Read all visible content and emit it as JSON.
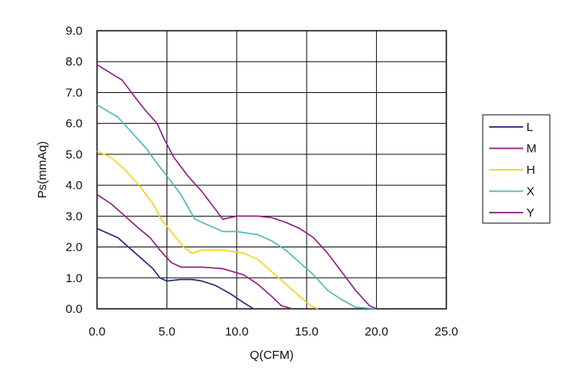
{
  "chart_data": {
    "type": "line",
    "xlabel": "Q(CFM)",
    "ylabel": "Ps(mmAq)",
    "xlim": [
      0,
      25
    ],
    "ylim": [
      0,
      9
    ],
    "x_ticks": [
      "0.0",
      "5.0",
      "10.0",
      "15.0",
      "20.0",
      "25.0"
    ],
    "y_ticks": [
      "0.0",
      "1.0",
      "2.0",
      "3.0",
      "4.0",
      "5.0",
      "6.0",
      "7.0",
      "8.0",
      "9.0"
    ],
    "grid": true,
    "legend_position": "right",
    "series": [
      {
        "name": "L",
        "color": "#1f2a78",
        "points": [
          [
            0,
            2.6
          ],
          [
            1.5,
            2.3
          ],
          [
            3,
            1.7
          ],
          [
            4,
            1.3
          ],
          [
            4.5,
            1.0
          ],
          [
            5,
            0.9
          ],
          [
            6,
            0.95
          ],
          [
            6.8,
            0.95
          ],
          [
            7.5,
            0.9
          ],
          [
            8.5,
            0.75
          ],
          [
            9.5,
            0.5
          ],
          [
            10.5,
            0.2
          ],
          [
            11.2,
            0
          ]
        ]
      },
      {
        "name": "M",
        "color": "#8b1e82",
        "points": [
          [
            0,
            3.7
          ],
          [
            1,
            3.4
          ],
          [
            2,
            3.0
          ],
          [
            3,
            2.6
          ],
          [
            3.8,
            2.3
          ],
          [
            4.5,
            1.9
          ],
          [
            5.3,
            1.5
          ],
          [
            6,
            1.35
          ],
          [
            7.5,
            1.35
          ],
          [
            9,
            1.3
          ],
          [
            10.5,
            1.1
          ],
          [
            11.5,
            0.8
          ],
          [
            12.5,
            0.4
          ],
          [
            13.2,
            0.1
          ],
          [
            14,
            0
          ]
        ]
      },
      {
        "name": "H",
        "color": "#f7d11e",
        "points": [
          [
            0,
            5.1
          ],
          [
            1,
            4.9
          ],
          [
            2,
            4.5
          ],
          [
            3,
            4.0
          ],
          [
            4,
            3.4
          ],
          [
            4.6,
            2.9
          ],
          [
            5.3,
            2.5
          ],
          [
            6.2,
            2.0
          ],
          [
            6.8,
            1.8
          ],
          [
            7.5,
            1.9
          ],
          [
            9,
            1.9
          ],
          [
            10.5,
            1.8
          ],
          [
            11.5,
            1.6
          ],
          [
            12.5,
            1.2
          ],
          [
            13.5,
            0.8
          ],
          [
            14.5,
            0.4
          ],
          [
            15.3,
            0.1
          ],
          [
            15.8,
            0
          ]
        ]
      },
      {
        "name": "X",
        "color": "#4bb9b8",
        "points": [
          [
            0,
            6.6
          ],
          [
            1.5,
            6.2
          ],
          [
            2.5,
            5.7
          ],
          [
            3.5,
            5.2
          ],
          [
            4.3,
            4.7
          ],
          [
            5,
            4.3
          ],
          [
            6,
            3.7
          ],
          [
            7,
            2.9
          ],
          [
            8,
            2.7
          ],
          [
            9,
            2.5
          ],
          [
            10,
            2.5
          ],
          [
            11.5,
            2.4
          ],
          [
            12.5,
            2.2
          ],
          [
            13.5,
            1.9
          ],
          [
            14.5,
            1.5
          ],
          [
            15.5,
            1.1
          ],
          [
            16.5,
            0.6
          ],
          [
            17.5,
            0.3
          ],
          [
            18.5,
            0.05
          ],
          [
            20,
            0
          ]
        ]
      },
      {
        "name": "Y",
        "color": "#8b1e82",
        "points": [
          [
            0,
            7.9
          ],
          [
            1.8,
            7.4
          ],
          [
            2.8,
            6.8
          ],
          [
            3.5,
            6.4
          ],
          [
            4.3,
            6.0
          ],
          [
            4.8,
            5.5
          ],
          [
            5.5,
            4.9
          ],
          [
            6.5,
            4.3
          ],
          [
            7.5,
            3.8
          ],
          [
            8.5,
            3.2
          ],
          [
            9,
            2.9
          ],
          [
            10,
            3.0
          ],
          [
            11.5,
            3.0
          ],
          [
            12.5,
            2.95
          ],
          [
            13.5,
            2.8
          ],
          [
            14.5,
            2.6
          ],
          [
            15.5,
            2.3
          ],
          [
            16.5,
            1.8
          ],
          [
            17.5,
            1.2
          ],
          [
            18.5,
            0.6
          ],
          [
            19.5,
            0.1
          ],
          [
            20,
            0
          ]
        ]
      }
    ]
  }
}
